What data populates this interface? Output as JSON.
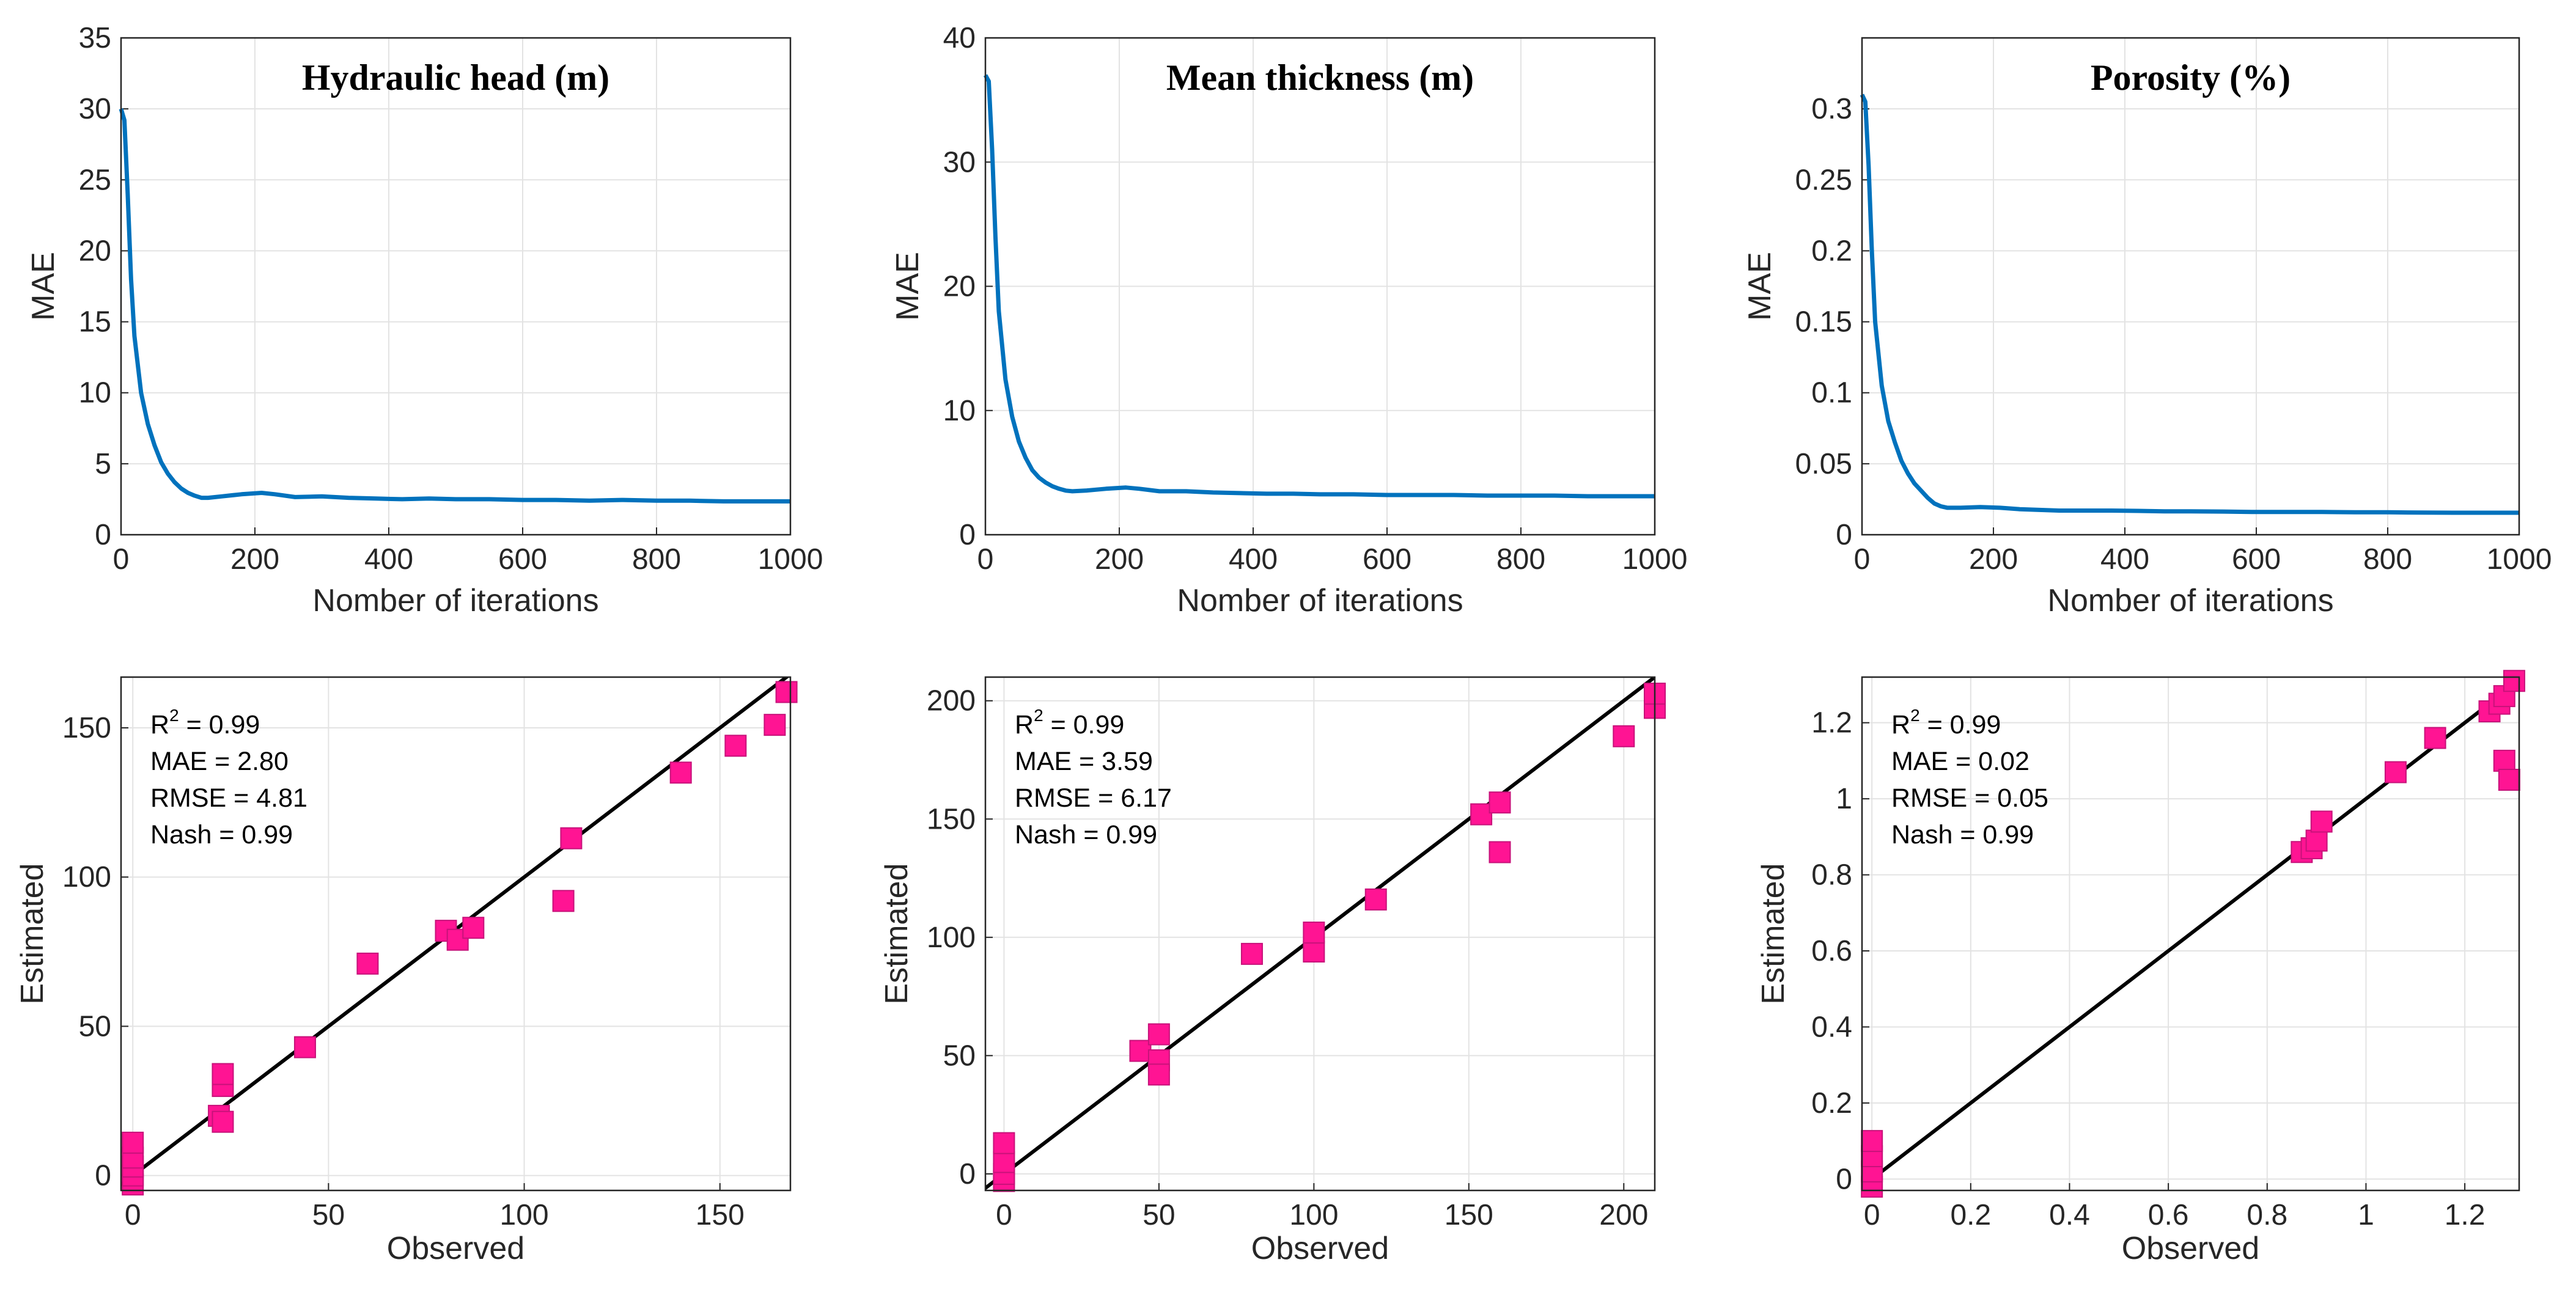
{
  "chart_data": [
    {
      "type": "line",
      "title": "Hydraulic head (m)",
      "xlabel": "Nomber of iterations",
      "ylabel": "MAE",
      "xlim": [
        0,
        1000
      ],
      "ylim": [
        0,
        35
      ],
      "xticks": [
        "0",
        "200",
        "400",
        "600",
        "800",
        "1000"
      ],
      "yticks": [
        "0",
        "5",
        "10",
        "15",
        "20",
        "25",
        "30",
        "35"
      ],
      "grid": true,
      "color": "#0072BD",
      "x": [
        0,
        5,
        10,
        15,
        20,
        30,
        40,
        50,
        60,
        70,
        80,
        90,
        100,
        110,
        120,
        130,
        150,
        180,
        210,
        230,
        260,
        300,
        340,
        380,
        420,
        460,
        500,
        550,
        600,
        650,
        700,
        750,
        800,
        850,
        900,
        950,
        1000
      ],
      "values": [
        30,
        29.2,
        24,
        18,
        14,
        10,
        7.8,
        6.3,
        5.1,
        4.3,
        3.7,
        3.25,
        2.95,
        2.75,
        2.6,
        2.6,
        2.7,
        2.85,
        2.95,
        2.85,
        2.65,
        2.7,
        2.6,
        2.55,
        2.5,
        2.55,
        2.5,
        2.5,
        2.45,
        2.45,
        2.4,
        2.45,
        2.4,
        2.4,
        2.35,
        2.35,
        2.35
      ]
    },
    {
      "type": "line",
      "title": "Mean thickness (m)",
      "xlabel": "Nomber of iterations",
      "ylabel": "MAE",
      "xlim": [
        0,
        1000
      ],
      "ylim": [
        0,
        40
      ],
      "xticks": [
        "0",
        "200",
        "400",
        "600",
        "800",
        "1000"
      ],
      "yticks": [
        "0",
        "10",
        "20",
        "30",
        "40"
      ],
      "grid": true,
      "color": "#0072BD",
      "x": [
        0,
        5,
        10,
        15,
        20,
        30,
        40,
        50,
        60,
        70,
        80,
        90,
        100,
        110,
        120,
        130,
        150,
        180,
        210,
        230,
        260,
        300,
        340,
        380,
        420,
        460,
        500,
        550,
        600,
        650,
        700,
        750,
        800,
        850,
        900,
        950,
        1000
      ],
      "values": [
        37,
        36.5,
        31,
        24,
        18,
        12.5,
        9.5,
        7.5,
        6.2,
        5.2,
        4.6,
        4.2,
        3.9,
        3.7,
        3.55,
        3.5,
        3.55,
        3.7,
        3.8,
        3.7,
        3.5,
        3.5,
        3.4,
        3.35,
        3.3,
        3.3,
        3.25,
        3.25,
        3.2,
        3.2,
        3.2,
        3.15,
        3.15,
        3.15,
        3.1,
        3.1,
        3.1
      ]
    },
    {
      "type": "line",
      "title": "Porosity (%)",
      "xlabel": "Nomber of iterations",
      "ylabel": "MAE",
      "xlim": [
        0,
        1000
      ],
      "ylim": [
        0,
        0.35
      ],
      "xticks": [
        "0",
        "200",
        "400",
        "600",
        "800",
        "1000"
      ],
      "yticks": [
        "0",
        "0.05",
        "0.1",
        "0.15",
        "0.2",
        "0.25",
        "0.3"
      ],
      "grid": true,
      "color": "#0072BD",
      "x": [
        0,
        5,
        10,
        15,
        20,
        30,
        40,
        50,
        60,
        70,
        80,
        90,
        100,
        110,
        120,
        130,
        150,
        180,
        210,
        240,
        270,
        300,
        340,
        380,
        420,
        460,
        500,
        550,
        600,
        650,
        700,
        750,
        800,
        850,
        900,
        950,
        1000
      ],
      "values": [
        0.31,
        0.305,
        0.26,
        0.2,
        0.15,
        0.105,
        0.08,
        0.065,
        0.052,
        0.043,
        0.036,
        0.031,
        0.026,
        0.022,
        0.02,
        0.019,
        0.019,
        0.0195,
        0.019,
        0.018,
        0.0175,
        0.017,
        0.017,
        0.017,
        0.0168,
        0.0165,
        0.0165,
        0.0163,
        0.016,
        0.016,
        0.016,
        0.0158,
        0.0158,
        0.0156,
        0.0155,
        0.0155,
        0.0155
      ]
    },
    {
      "type": "scatter",
      "xlabel": "Observed",
      "ylabel": "Estimated",
      "xlim": [
        -3,
        168
      ],
      "ylim": [
        -5,
        167
      ],
      "xticks": [
        "0",
        "50",
        "100",
        "150"
      ],
      "yticks": [
        "0",
        "50",
        "100",
        "150"
      ],
      "grid": true,
      "marker_color": "#FF1493",
      "line_label": "1:1",
      "stats": {
        "r2_label": "R",
        "r2_value": " = 0.99",
        "mae": "MAE = 2.80",
        "rmse": "RMSE = 4.81",
        "nash": "Nash = 0.99"
      },
      "points": [
        [
          0,
          -3
        ],
        [
          0,
          0
        ],
        [
          0,
          3
        ],
        [
          0,
          6
        ],
        [
          0,
          11
        ],
        [
          22,
          20
        ],
        [
          23,
          30
        ],
        [
          23,
          34
        ],
        [
          23,
          18
        ],
        [
          44,
          43
        ],
        [
          60,
          71
        ],
        [
          80,
          82
        ],
        [
          83,
          79
        ],
        [
          87,
          83
        ],
        [
          110,
          92
        ],
        [
          112,
          113
        ],
        [
          140,
          135
        ],
        [
          154,
          144
        ],
        [
          164,
          151
        ],
        [
          167,
          162
        ]
      ]
    },
    {
      "type": "scatter",
      "xlabel": "Observed",
      "ylabel": "Estimated",
      "xlim": [
        -6,
        210
      ],
      "ylim": [
        -7,
        210
      ],
      "xticks": [
        "0",
        "50",
        "100",
        "150",
        "200"
      ],
      "yticks": [
        "0",
        "50",
        "100",
        "150",
        "200"
      ],
      "grid": true,
      "marker_color": "#FF1493",
      "line_label": "1:1",
      "stats": {
        "r2_label": "R",
        "r2_value": " = 0.99",
        "mae": "MAE = 3.59",
        "rmse": "RMSE = 6.17",
        "nash": "Nash = 0.99"
      },
      "points": [
        [
          0,
          -3
        ],
        [
          0,
          0
        ],
        [
          0,
          5
        ],
        [
          0,
          13
        ],
        [
          44,
          52
        ],
        [
          50,
          59
        ],
        [
          50,
          48
        ],
        [
          50,
          42
        ],
        [
          80,
          93
        ],
        [
          100,
          94
        ],
        [
          100,
          102
        ],
        [
          120,
          116
        ],
        [
          154,
          152
        ],
        [
          160,
          157
        ],
        [
          160,
          136
        ],
        [
          200,
          185
        ],
        [
          210,
          197
        ],
        [
          210,
          203
        ]
      ]
    },
    {
      "type": "scatter",
      "xlabel": "Observed",
      "ylabel": "Estimated",
      "xlim": [
        -0.02,
        1.31
      ],
      "ylim": [
        -0.03,
        1.32
      ],
      "xticks": [
        "0",
        "0.2",
        "0.4",
        "0.6",
        "0.8",
        "1",
        "1.2"
      ],
      "yticks": [
        "0",
        "0.2",
        "0.4",
        "0.6",
        "0.8",
        "1",
        "1.2"
      ],
      "grid": true,
      "marker_color": "#FF1493",
      "line_label": "1:1",
      "stats": {
        "r2_label": "R",
        "r2_value": " = 0.99",
        "mae": "MAE = 0.02",
        "rmse": "RMSE = 0.05",
        "nash": "Nash = 0.99"
      },
      "points": [
        [
          0,
          -0.02
        ],
        [
          0,
          0.02
        ],
        [
          0,
          0.06
        ],
        [
          0,
          0.1
        ],
        [
          0.87,
          0.86
        ],
        [
          0.89,
          0.87
        ],
        [
          0.9,
          0.89
        ],
        [
          0.91,
          0.94
        ],
        [
          1.06,
          1.07
        ],
        [
          1.14,
          1.16
        ],
        [
          1.25,
          1.23
        ],
        [
          1.27,
          1.25
        ],
        [
          1.28,
          1.27
        ],
        [
          1.3,
          1.31
        ],
        [
          1.28,
          1.1
        ],
        [
          1.29,
          1.05
        ]
      ]
    }
  ]
}
